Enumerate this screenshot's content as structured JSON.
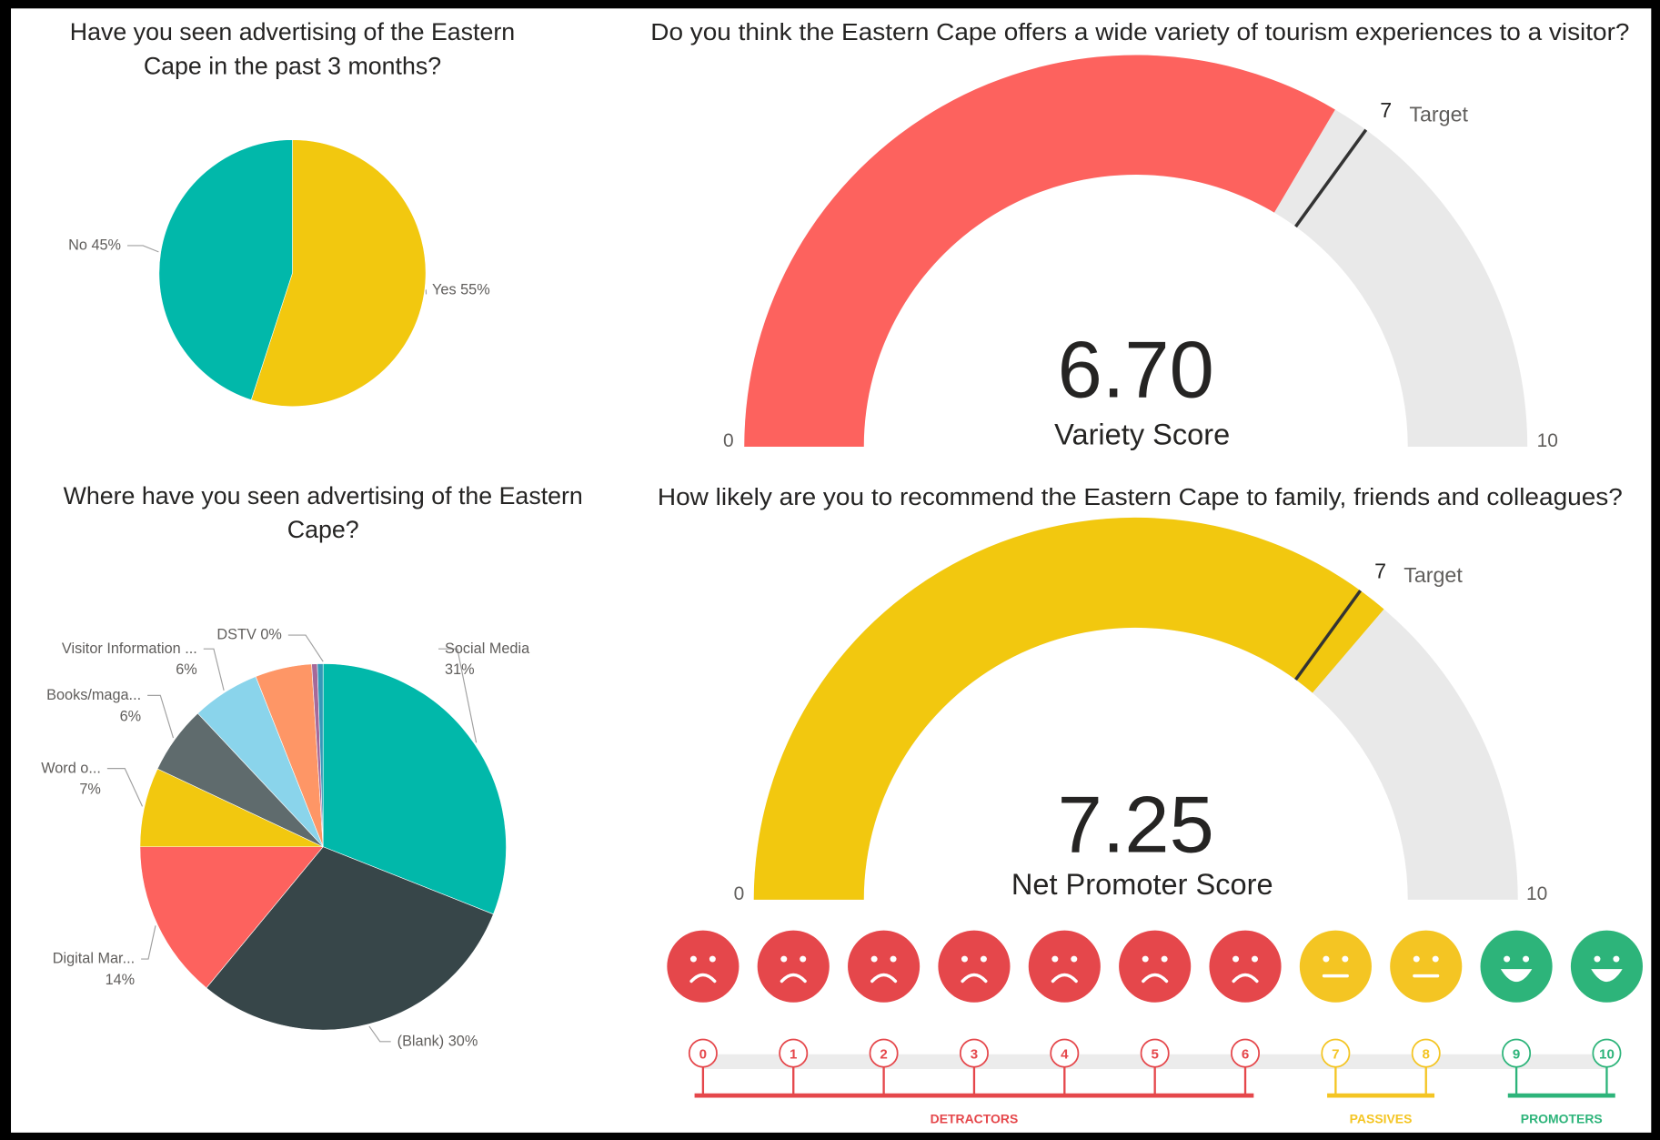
{
  "chart_data": [
    {
      "type": "pie",
      "title": "Have you seen advertising of the Eastern Cape in the past 3 months?",
      "categories": [
        "Yes",
        "No"
      ],
      "values": [
        55,
        45
      ],
      "value_labels": [
        "55%",
        "45%"
      ],
      "colors": [
        "#f2c80f",
        "#01b8aa"
      ]
    },
    {
      "type": "gauge",
      "title": "Do you think the Eastern Cape offers a wide variety of tourism experiences to a visitor?",
      "value": 6.7,
      "value_label": "6.70",
      "label": "Variety Score",
      "ylim": [
        0,
        10
      ],
      "target": 7,
      "target_label": "Target",
      "color": "#fd625e"
    },
    {
      "type": "pie",
      "title": "Where have you seen advertising of the Eastern Cape?",
      "categories": [
        "Social Media",
        "(Blank)",
        "Digital Mar...",
        "Word o...",
        "Books/maga...",
        "Visitor Information ...",
        null,
        null,
        null,
        "DSTV"
      ],
      "values": [
        31,
        30,
        14,
        7,
        6,
        6,
        5,
        0.5,
        0.5,
        0
      ],
      "value_labels": [
        "31%",
        "30%",
        "14%",
        "7%",
        "6%",
        "6%",
        null,
        null,
        null,
        "0%"
      ],
      "colors": [
        "#01b8aa",
        "#374649",
        "#fd625e",
        "#f2c80f",
        "#5f6b6d",
        "#8ad4eb",
        "#fe9666",
        "#a66999",
        "#3599b8",
        "#dfbfbf"
      ]
    },
    {
      "type": "gauge",
      "title": "How likely are you to recommend the Eastern Cape to family, friends and colleagues?",
      "value": 7.25,
      "value_label": "7.25",
      "label": "Net Promoter Score",
      "ylim": [
        0,
        10
      ],
      "target": 7,
      "target_label": "Target",
      "color": "#f2c80f"
    }
  ],
  "nps_scale": {
    "groups": [
      {
        "name": "DETRACTORS",
        "color": "#e5474b",
        "scores": [
          0,
          1,
          2,
          3,
          4,
          5,
          6
        ]
      },
      {
        "name": "PASSIVES",
        "color": "#f4c523",
        "scores": [
          7,
          8
        ]
      },
      {
        "name": "PROMOTERS",
        "color": "#2db47a",
        "scores": [
          9,
          10
        ]
      }
    ]
  }
}
